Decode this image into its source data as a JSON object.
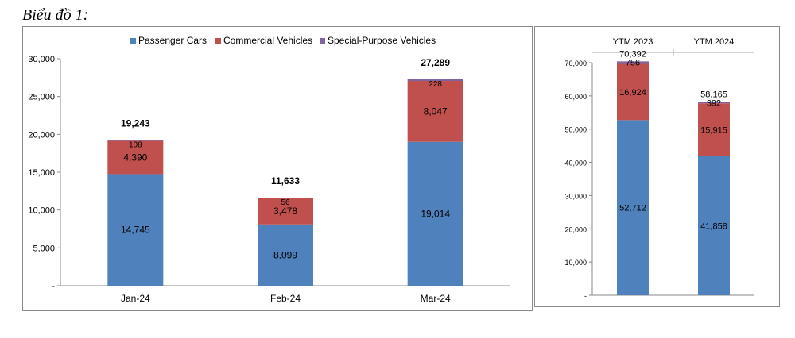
{
  "heading": "Biểu đồ 1:",
  "colors": {
    "passenger": "#4F81BD",
    "commercial": "#C0504D",
    "special": "#8064A2"
  },
  "chart_data": [
    {
      "type": "bar",
      "stacked": true,
      "categories": [
        "Jan-24",
        "Feb-24",
        "Mar-24"
      ],
      "series": [
        {
          "name": "Passenger Cars",
          "values": [
            14745,
            8099,
            19014
          ]
        },
        {
          "name": "Commercial Vehicles",
          "values": [
            4390,
            3478,
            8047
          ]
        },
        {
          "name": "Special-Purpose Vehicles",
          "values": [
            108,
            56,
            228
          ]
        }
      ],
      "totals": [
        19243,
        11633,
        27289
      ],
      "value_labels": {
        "series": [
          [
            "14,745",
            "8,099",
            "19,014"
          ],
          [
            "4,390",
            "3,478",
            "8,047"
          ],
          [
            "108",
            "56",
            "228"
          ]
        ],
        "totals": [
          "19,243",
          "11,633",
          "27,289"
        ]
      },
      "ylim": [
        0,
        30000
      ],
      "yticks": [
        0,
        5000,
        10000,
        15000,
        20000,
        25000,
        30000
      ],
      "ytick_labels": [
        "-",
        "5,000",
        "10,000",
        "15,000",
        "20,000",
        "25,000",
        "30,000"
      ],
      "legend_position": "top",
      "grid": false
    },
    {
      "type": "bar",
      "stacked": true,
      "categories": [
        "YTM 2023",
        "YTM 2024"
      ],
      "category_axis_position": "top",
      "series": [
        {
          "name": "Passenger Cars",
          "values": [
            52712,
            41858
          ]
        },
        {
          "name": "Commercial Vehicles",
          "values": [
            16924,
            15915
          ]
        },
        {
          "name": "Special-Purpose Vehicles",
          "values": [
            756,
            392
          ]
        }
      ],
      "totals": [
        70392,
        58165
      ],
      "value_labels": {
        "series": [
          [
            "52,712",
            "41,858"
          ],
          [
            "16,924",
            "15,915"
          ],
          [
            "756",
            "392"
          ]
        ],
        "totals": [
          "70,392",
          "58,165"
        ]
      },
      "ylim": [
        0,
        70000
      ],
      "yticks": [
        0,
        10000,
        20000,
        30000,
        40000,
        50000,
        60000,
        70000
      ],
      "ytick_labels": [
        "-",
        "10,000",
        "20,000",
        "30,000",
        "40,000",
        "50,000",
        "60,000",
        "70,000"
      ],
      "grid": false
    }
  ]
}
